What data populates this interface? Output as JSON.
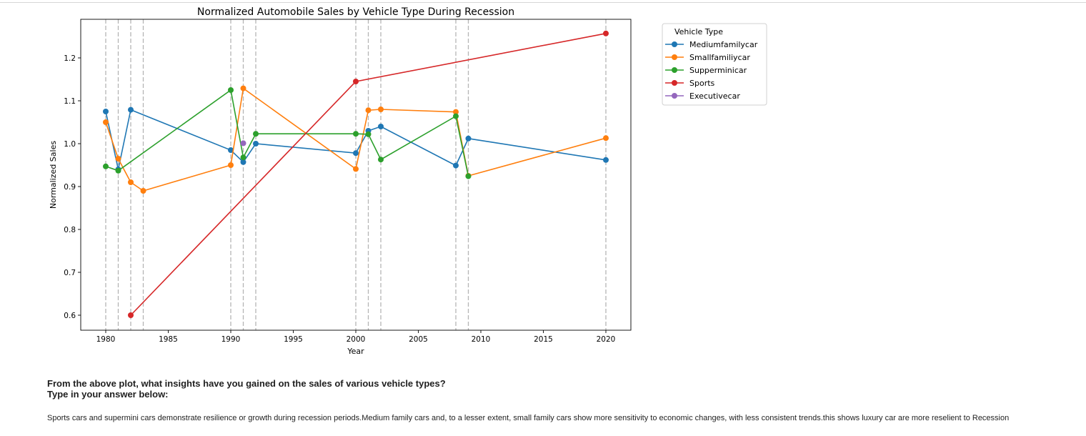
{
  "notebook": {
    "question_line1": "From the above plot, what insights have you gained on the sales of various vehicle types?",
    "question_line2": "Type in your answer below:",
    "answer": "Sports cars and supermini cars demonstrate resilience or growth during recession periods.Medium family cars and, to a lesser extent, small family cars show more sensitivity to economic changes, with less consistent trends.this shows luxury car are more reselient to Recession"
  },
  "chart_data": {
    "type": "line",
    "title": "Normalized Automobile Sales by Vehicle Type During Recession",
    "xlabel": "Year",
    "ylabel": "Normalized Sales",
    "xlim": [
      1978,
      2022
    ],
    "ylim": [
      0.565,
      1.29
    ],
    "x_ticks": [
      1980,
      1985,
      1990,
      1995,
      2000,
      2005,
      2010,
      2015,
      2020
    ],
    "y_ticks": [
      0.6,
      0.7,
      0.8,
      0.9,
      1.0,
      1.1,
      1.2
    ],
    "recession_lines": [
      1980,
      1981,
      1982,
      1983,
      1990,
      1991,
      1992,
      2000,
      2001,
      2002,
      2008,
      2009,
      2020
    ],
    "legend": {
      "title": "Vehicle Type",
      "position": "outside upper right"
    },
    "grid": false,
    "series": [
      {
        "name": "Mediumfamilycar",
        "color": "#1f77b4",
        "points": [
          [
            1980,
            1.075
          ],
          [
            1981,
            0.94
          ],
          [
            1982,
            1.079
          ],
          [
            1990,
            0.985
          ],
          [
            1991,
            0.957
          ],
          [
            1992,
            1.0
          ],
          [
            2000,
            0.978
          ],
          [
            2001,
            1.03
          ],
          [
            2002,
            1.04
          ],
          [
            2008,
            0.949
          ],
          [
            2009,
            1.012
          ],
          [
            2020,
            0.962
          ]
        ]
      },
      {
        "name": "Smallfamiliycar",
        "color": "#ff7f0e",
        "points": [
          [
            1980,
            1.05
          ],
          [
            1981,
            0.965
          ],
          [
            1982,
            0.91
          ],
          [
            1983,
            0.89
          ],
          [
            1990,
            0.95
          ],
          [
            1991,
            1.129
          ],
          [
            2000,
            0.941
          ],
          [
            2001,
            1.078
          ],
          [
            2002,
            1.08
          ],
          [
            2008,
            1.074
          ],
          [
            2009,
            0.925
          ],
          [
            2020,
            1.013
          ]
        ]
      },
      {
        "name": "Supperminicar",
        "color": "#2ca02c",
        "points": [
          [
            1980,
            0.947
          ],
          [
            1981,
            0.937
          ],
          [
            1990,
            1.125
          ],
          [
            1991,
            0.968
          ],
          [
            1992,
            1.023
          ],
          [
            2000,
            1.023
          ],
          [
            2001,
            1.022
          ],
          [
            2002,
            0.963
          ],
          [
            2008,
            1.064
          ],
          [
            2009,
            0.924
          ]
        ]
      },
      {
        "name": "Sports",
        "color": "#d62728",
        "points": [
          [
            1982,
            0.6
          ],
          [
            2000,
            1.145
          ],
          [
            2020,
            1.257
          ]
        ]
      },
      {
        "name": "Executivecar",
        "color": "#9467bd",
        "points": [
          [
            1991,
            1.001
          ]
        ]
      }
    ]
  }
}
